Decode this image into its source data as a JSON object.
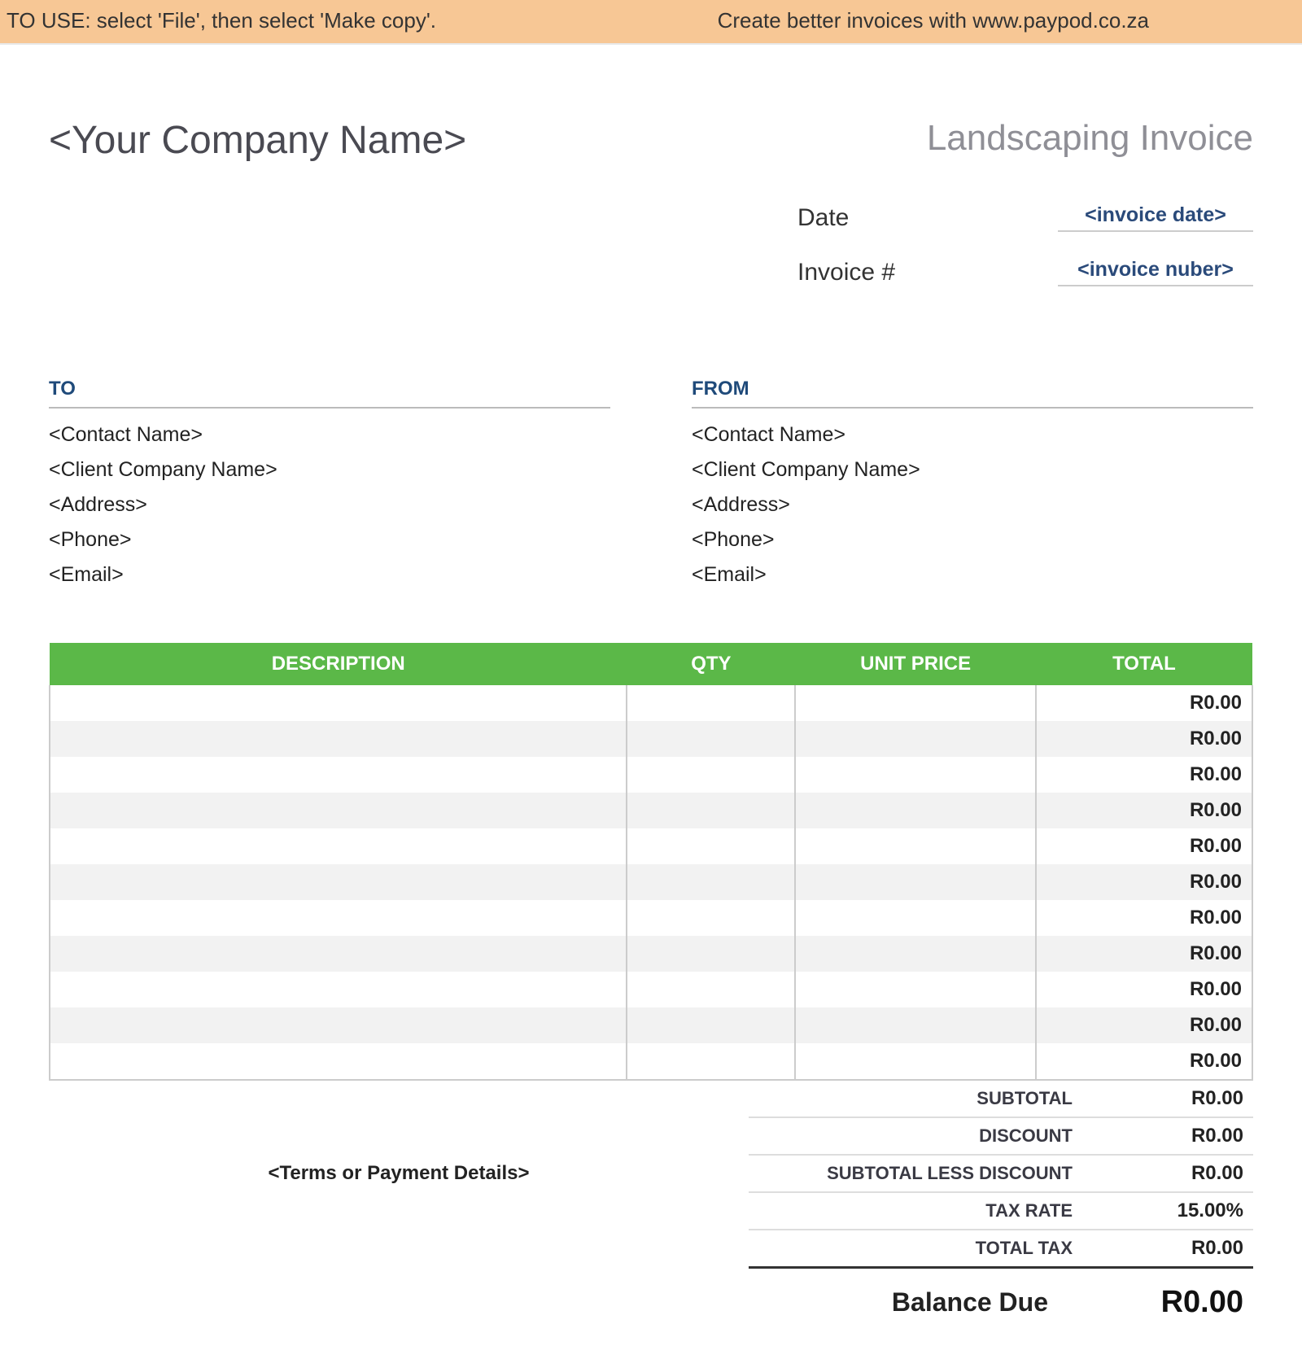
{
  "banner": {
    "left": "TO USE: select 'File', then select 'Make copy'.",
    "right": "Create better invoices with www.paypod.co.za",
    "background_color": "#f7c795"
  },
  "header": {
    "company_name": "<Your Company Name>",
    "invoice_title": "Landscaping Invoice"
  },
  "meta": {
    "date_label": "Date",
    "date_value": "<invoice date>",
    "number_label": "Invoice #",
    "number_value": "<invoice nuber>"
  },
  "to": {
    "heading": "TO",
    "lines": [
      "<Contact Name>",
      "<Client Company Name>",
      "<Address>",
      "<Phone>",
      "<Email>"
    ]
  },
  "from": {
    "heading": "FROM",
    "lines": [
      "<Contact Name>",
      "<Client Company Name>",
      "<Address>",
      "<Phone>",
      "<Email>"
    ]
  },
  "table": {
    "header_bg": "#5bb848",
    "header_fg": "#ffffff",
    "alt_row_bg": "#f2f2f2",
    "columns": {
      "description": "DESCRIPTION",
      "qty": "QTY",
      "unit_price": "UNIT PRICE",
      "total": "TOTAL"
    },
    "rows": [
      {
        "description": "",
        "qty": "",
        "unit_price": "",
        "total": "R0.00"
      },
      {
        "description": "",
        "qty": "",
        "unit_price": "",
        "total": "R0.00"
      },
      {
        "description": "",
        "qty": "",
        "unit_price": "",
        "total": "R0.00"
      },
      {
        "description": "",
        "qty": "",
        "unit_price": "",
        "total": "R0.00"
      },
      {
        "description": "",
        "qty": "",
        "unit_price": "",
        "total": "R0.00"
      },
      {
        "description": "",
        "qty": "",
        "unit_price": "",
        "total": "R0.00"
      },
      {
        "description": "",
        "qty": "",
        "unit_price": "",
        "total": "R0.00"
      },
      {
        "description": "",
        "qty": "",
        "unit_price": "",
        "total": "R0.00"
      },
      {
        "description": "",
        "qty": "",
        "unit_price": "",
        "total": "R0.00"
      },
      {
        "description": "",
        "qty": "",
        "unit_price": "",
        "total": "R0.00"
      },
      {
        "description": "",
        "qty": "",
        "unit_price": "",
        "total": "R0.00"
      }
    ]
  },
  "terms": "<Terms or Payment Details>",
  "summary": {
    "subtotal_label": "SUBTOTAL",
    "subtotal_value": "R0.00",
    "discount_label": "DISCOUNT",
    "discount_value": "R0.00",
    "less_discount_label": "SUBTOTAL LESS DISCOUNT",
    "less_discount_value": "R0.00",
    "tax_rate_label": "TAX RATE",
    "tax_rate_value": "15.00%",
    "total_tax_label": "TOTAL TAX",
    "total_tax_value": "R0.00",
    "balance_label": "Balance Due",
    "balance_value": "R0.00"
  }
}
